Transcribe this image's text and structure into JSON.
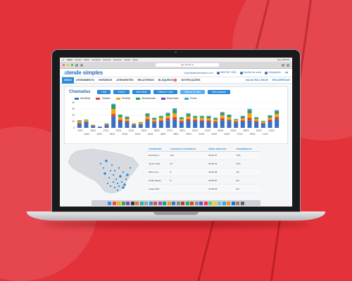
{
  "mac_menu": {
    "apple": "",
    "items": [
      "Safari",
      "Arquivo",
      "Editar",
      "Visualizar",
      "Histórico",
      "Favoritos",
      "Janela",
      "Ajuda"
    ],
    "time": "Seg 4:58 PM"
  },
  "browser": {
    "url": "app.atende.io"
  },
  "header": {
    "logo_a": "a",
    "logo_rest": "tende simples",
    "email": "noyes@atendesimples.com",
    "phone": "0800 567 1560",
    "options": "Opções da conta",
    "integrations": "Integrações"
  },
  "nav": {
    "items": [
      "INÍCIO",
      "ATENDIMENTO",
      "HORÁRIOS",
      "ATENDENTES",
      "RELATÓRIOS",
      "BLOQUEIOS",
      "NOTIFICAÇÕES"
    ],
    "blocked_badge": "2",
    "saldo": "SALDO R$ 2.356,50",
    "recarregar": "RECARREGAR"
  },
  "chamadas": {
    "title": "Chamadas",
    "filters": [
      "Hoje",
      "Ontem",
      "Mês Atual",
      "Últimos 7 dias",
      "Últimos 30 dias",
      "Mês passado"
    ],
    "selected_filter": "Últimos 30 dias"
  },
  "colors": {
    "brand": "#2d6fb7",
    "accent": "#2d8ad8",
    "background": "#e4323a"
  },
  "chart_data": {
    "type": "bar",
    "stacked": true,
    "legend_position": "top",
    "ylim": [
      0,
      40
    ],
    "yticks": [
      0,
      10,
      20,
      30,
      40
    ],
    "grid": true,
    "x_top": [
      "13/01",
      "15/01",
      "17/01",
      "19/01",
      "21/01",
      "23/01",
      "25/01",
      "27/01",
      "29/01",
      "31/01",
      "02/02",
      "04/02",
      "06/02",
      "08/02",
      "10/02",
      "12/02"
    ],
    "x_bottom": [
      "14/01",
      "16/01",
      "18/01",
      "20/01",
      "22/01",
      "24/01",
      "26/01",
      "28/01",
      "30/01",
      "01/02",
      "03/02",
      "05/02",
      "07/02",
      "09/02",
      "11/02"
    ],
    "series": [
      {
        "name": "Atendidas",
        "color": "#3a6fc4",
        "values": [
          6,
          9,
          3,
          2,
          4,
          18,
          10,
          9,
          4,
          5,
          11,
          8,
          10,
          12,
          13,
          9,
          11,
          11,
          10,
          9,
          8,
          12,
          11,
          8,
          10,
          12,
          9,
          7,
          10,
          14
        ]
      },
      {
        "name": "Tratadas",
        "color": "#d9432a",
        "values": [
          2,
          1,
          1,
          0,
          1,
          4,
          3,
          2,
          1,
          1,
          3,
          2,
          2,
          3,
          4,
          2,
          3,
          2,
          2,
          3,
          2,
          3,
          2,
          2,
          2,
          4,
          2,
          1,
          3,
          3
        ]
      },
      {
        "name": "Perdidas",
        "color": "#f2a51c",
        "values": [
          2,
          2,
          1,
          0,
          1,
          8,
          4,
          3,
          1,
          2,
          4,
          3,
          4,
          4,
          6,
          3,
          4,
          3,
          4,
          3,
          3,
          5,
          4,
          2,
          3,
          7,
          3,
          2,
          3,
          5
        ]
      },
      {
        "name": "Abandonadas",
        "color": "#2aa34a",
        "values": [
          1,
          1,
          0,
          0,
          1,
          5,
          3,
          2,
          1,
          1,
          3,
          2,
          2,
          3,
          5,
          2,
          3,
          2,
          2,
          2,
          2,
          3,
          3,
          1,
          2,
          4,
          2,
          1,
          2,
          3
        ]
      },
      {
        "name": "Bloqueadas",
        "color": "#7a3fb0",
        "values": [
          0,
          0,
          0,
          0,
          0,
          1,
          0,
          1,
          0,
          0,
          1,
          0,
          0,
          1,
          1,
          0,
          1,
          0,
          0,
          1,
          0,
          1,
          0,
          0,
          1,
          1,
          0,
          0,
          1,
          1
        ]
      },
      {
        "name": "Outras",
        "color": "#27b3d6",
        "values": [
          1,
          0,
          0,
          0,
          0,
          2,
          1,
          1,
          0,
          0,
          1,
          1,
          1,
          1,
          2,
          1,
          1,
          1,
          1,
          1,
          1,
          1,
          1,
          1,
          1,
          2,
          1,
          0,
          1,
          2
        ]
      }
    ]
  },
  "table": {
    "headers": [
      "ATENDENTE",
      "CHAMADAS ATENDIDAS",
      "MÉDIA MINUTOS",
      "ATENDIMENTO"
    ],
    "rows": [
      [
        "Escritório 1",
        "143",
        "00:04:07",
        "73%"
      ],
      [
        "Joyce Coeli",
        "42",
        "00:03:41",
        "21%"
      ],
      [
        "APS Cel 2",
        "5",
        "00:03:08",
        "1%"
      ],
      [
        "André Skype",
        "5",
        "00:04:07",
        "2%"
      ],
      [
        "Celera DID",
        "-",
        "00:00:03",
        "0%"
      ]
    ]
  },
  "dock_colors": [
    "#3b8ee8",
    "#f04a3a",
    "#f4b400",
    "#34a853",
    "#8e44ad",
    "#2c3e50",
    "#e67e22",
    "#1abc9c",
    "#95a5a6",
    "#3498db",
    "#e74c3c",
    "#9b59b6",
    "#16a085",
    "#f39c12",
    "#2980b9",
    "#7f8c8d",
    "#c0392b",
    "#27ae60",
    "#d35400",
    "#8e8e93",
    "#5856d6",
    "#ff2d55",
    "#4cd964",
    "#ffcc00",
    "#5ac8fa",
    "#34aadc",
    "#ff9500",
    "#007aff",
    "#a2845e",
    "#636366"
  ]
}
